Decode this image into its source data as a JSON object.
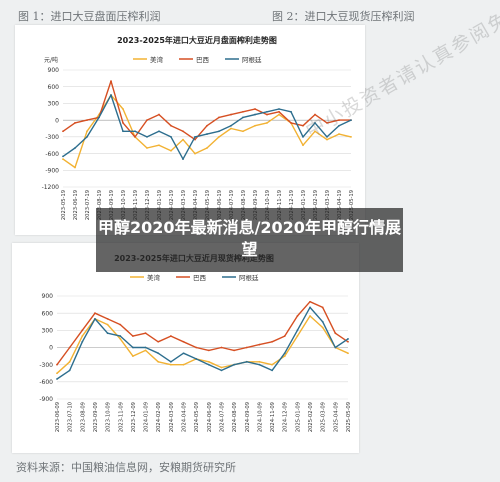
{
  "labels": {
    "fig1": "图 1：进口大豆盘面压榨利润",
    "fig2": "图 2：进口大豆现货压榨利润",
    "watermark": "中小投资者请认真参阅免责声明，应该独立作出投资决策，自行承担风险，不应简单依赖任何投资建议",
    "overlay_title": "甲醇2020年最新消息/2020年甲醇行情展望",
    "source": "资料来源：中国粮油信息网，安粮期货研究所"
  },
  "colors": {
    "美湾": "#f2b233",
    "巴西": "#d64f22",
    "阿根廷": "#2d6e8e"
  },
  "chart_data": [
    {
      "type": "line",
      "title": "2023-2025年进口大豆近月盘面榨利走势图",
      "ylabel": "元/吨",
      "ylim": [
        -1200,
        900
      ],
      "yticks": [
        900,
        600,
        300,
        0,
        -300,
        -600,
        -900,
        -1200
      ],
      "x": [
        "2023-05-19",
        "2023-06-19",
        "2023-07-19",
        "2023-08-19",
        "2023-09-19",
        "2023-10-19",
        "2023-11-19",
        "2023-12-19",
        "2024-01-19",
        "2024-02-19",
        "2024-03-19",
        "2024-04-19",
        "2024-05-19",
        "2024-06-19",
        "2024-07-19",
        "2024-08-19",
        "2024-09-19",
        "2024-10-19",
        "2024-11-19",
        "2024-12-19",
        "2025-01-19",
        "2025-02-19",
        "2025-03-19",
        "2025-04-19",
        "2025-05-19"
      ],
      "legend": [
        "美湾",
        "巴西",
        "阿根廷"
      ],
      "legend_position": "top",
      "grid": true,
      "series": [
        {
          "name": "美湾",
          "values": [
            -700,
            -850,
            -200,
            100,
            450,
            200,
            -300,
            -500,
            -450,
            -550,
            -350,
            -600,
            -500,
            -300,
            -150,
            -200,
            -100,
            -50,
            100,
            -50,
            -450,
            -200,
            -350,
            -250,
            -300
          ]
        },
        {
          "name": "巴西",
          "values": [
            -200,
            -50,
            0,
            50,
            700,
            -50,
            -300,
            0,
            100,
            -100,
            -200,
            -350,
            -100,
            50,
            100,
            150,
            200,
            100,
            150,
            -50,
            -100,
            100,
            -50,
            0,
            0
          ]
        },
        {
          "name": "阿根廷",
          "values": [
            -650,
            -500,
            -300,
            50,
            450,
            -200,
            -200,
            -300,
            -200,
            -300,
            -700,
            -300,
            -250,
            -200,
            -100,
            50,
            100,
            150,
            200,
            150,
            -300,
            -50,
            -300,
            -100,
            0
          ]
        }
      ]
    },
    {
      "type": "line",
      "title": "2023-2025年进口大豆近月现货榨利走势图",
      "ylim": [
        -900,
        900
      ],
      "yticks": [
        900,
        600,
        300,
        0,
        -300,
        -600,
        -900
      ],
      "x": [
        "2023-06-09",
        "2023-07-10",
        "2023-08-09",
        "2023-09-09",
        "2023-10-09",
        "2023-11-09",
        "2023-12-09",
        "2024-01-09",
        "2024-02-09",
        "2024-03-09",
        "2024-04-09",
        "2024-05-09",
        "2024-06-09",
        "2024-07-09",
        "2024-08-09",
        "2024-09-09",
        "2024-10-09",
        "2024-11-09",
        "2024-12-09",
        "2025-01-09",
        "2025-02-09",
        "2025-03-09",
        "2025-04-09",
        "2025-05-09"
      ],
      "legend": [
        "美湾",
        "巴西",
        "阿根廷"
      ],
      "legend_position": "top",
      "grid": true,
      "series": [
        {
          "name": "美湾",
          "values": [
            -450,
            -250,
            200,
            500,
            400,
            150,
            -150,
            -50,
            -250,
            -300,
            -300,
            -200,
            -250,
            -350,
            -300,
            -250,
            -250,
            -300,
            -150,
            200,
            550,
            350,
            0,
            -100
          ]
        },
        {
          "name": "巴西",
          "values": [
            -300,
            0,
            300,
            600,
            500,
            400,
            200,
            250,
            100,
            200,
            100,
            0,
            -50,
            0,
            -50,
            0,
            50,
            100,
            200,
            550,
            800,
            700,
            250,
            100
          ]
        },
        {
          "name": "阿根廷",
          "values": [
            -550,
            -400,
            100,
            500,
            250,
            200,
            0,
            0,
            -100,
            -250,
            -100,
            -200,
            -300,
            -400,
            -300,
            -250,
            -300,
            -400,
            -100,
            300,
            700,
            450,
            0,
            150
          ]
        }
      ]
    }
  ]
}
